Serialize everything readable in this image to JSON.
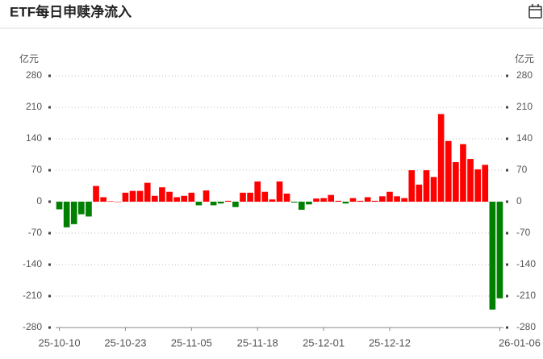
{
  "chart_data": {
    "type": "bar",
    "title": "ETF每日申赎净流入",
    "y_unit": "亿元",
    "categories": [
      "25-10-10",
      null,
      null,
      null,
      null,
      null,
      null,
      null,
      null,
      "25-10-23",
      null,
      null,
      null,
      null,
      null,
      null,
      null,
      null,
      "25-11-05",
      null,
      null,
      null,
      null,
      null,
      null,
      null,
      null,
      "25-11-18",
      null,
      null,
      null,
      null,
      null,
      null,
      null,
      null,
      "25-12-01",
      null,
      null,
      null,
      null,
      null,
      null,
      null,
      null,
      "25-12-12",
      null,
      null,
      null,
      null,
      null,
      null,
      null,
      null,
      null,
      null,
      null,
      null,
      null,
      null,
      "26-01-06"
    ],
    "values": [
      -17,
      -57,
      -50,
      -28,
      -33,
      35,
      10,
      1,
      0,
      20,
      24,
      24,
      42,
      13,
      32,
      22,
      10,
      13,
      20,
      -8,
      25,
      -8,
      -4,
      2,
      -12,
      20,
      20,
      45,
      22,
      5,
      45,
      18,
      -2,
      -18,
      -6,
      7,
      8,
      15,
      2,
      -4,
      8,
      2,
      10,
      2,
      12,
      22,
      12,
      8,
      70,
      38,
      70,
      55,
      195,
      135,
      88,
      128,
      95,
      72,
      82,
      -240,
      -215
    ],
    "positive_color": "#ff0000",
    "negative_color": "#008000",
    "ylim": [
      -280,
      280
    ],
    "yticks": [
      -280,
      -210,
      -140,
      -70,
      0,
      70,
      140,
      210,
      280
    ],
    "grid": true
  }
}
